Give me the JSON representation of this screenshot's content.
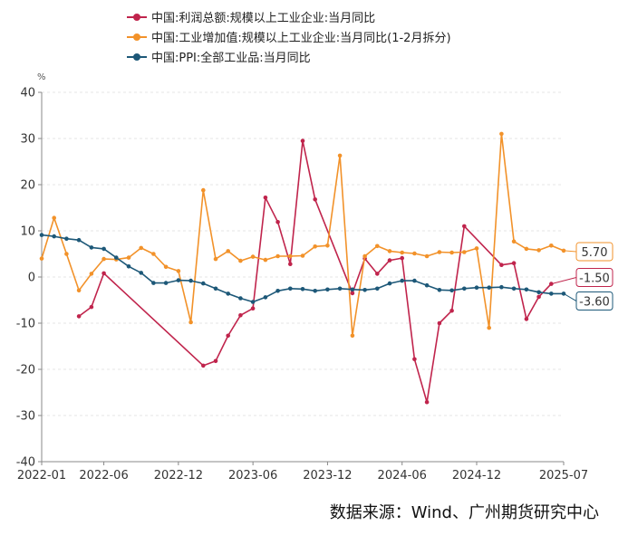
{
  "source_note": "数据来源：Wind、广州期货研究中心",
  "chart_data": {
    "type": "line",
    "y_unit": "%",
    "ylim": [
      -40,
      40
    ],
    "y_ticks": [
      "40",
      "30",
      "20",
      "10",
      "0",
      "-10",
      "-20",
      "-30",
      "-40"
    ],
    "x_tick_labels": [
      "2022-01",
      "2022-06",
      "2022-12",
      "2023-06",
      "2023-12",
      "2024-06",
      "2024-12",
      "2025-07"
    ],
    "x": [
      "2022-01",
      "2022-02",
      "2022-03",
      "2022-04",
      "2022-05",
      "2022-06",
      "2022-07",
      "2022-08",
      "2022-09",
      "2022-10",
      "2022-11",
      "2022-12",
      "2023-01",
      "2023-02",
      "2023-03",
      "2023-04",
      "2023-05",
      "2023-06",
      "2023-07",
      "2023-08",
      "2023-09",
      "2023-10",
      "2023-11",
      "2023-12",
      "2024-01",
      "2024-02",
      "2024-03",
      "2024-04",
      "2024-05",
      "2024-06",
      "2024-07",
      "2024-08",
      "2024-09",
      "2024-10",
      "2024-11",
      "2024-12",
      "2025-01",
      "2025-02",
      "2025-03",
      "2025-04",
      "2025-05",
      "2025-06",
      "2025-07"
    ],
    "grid": true,
    "legend_position": "top",
    "series": [
      {
        "name": "中国:利润总额:规模以上工业企业:当月同比",
        "color": "#c0244c",
        "end_label": "-1.50",
        "values": [
          null,
          null,
          null,
          -8.5,
          -6.5,
          0.8,
          null,
          null,
          null,
          null,
          null,
          null,
          null,
          -19.2,
          -18.2,
          -12.7,
          -8.3,
          -6.8,
          17.2,
          11.9,
          2.8,
          29.5,
          16.8,
          null,
          null,
          -3.5,
          4.0,
          0.7,
          3.6,
          4.1,
          -17.8,
          -27.1,
          -10.0,
          -7.3,
          11.0,
          null,
          null,
          2.6,
          3.0,
          -9.1,
          -4.3,
          -1.5,
          null
        ]
      },
      {
        "name": "中国:工业增加值:规模以上工业企业:当月同比(1-2月拆分)",
        "color": "#f2922a",
        "end_label": "5.70",
        "values": [
          4.0,
          12.8,
          5.0,
          -2.9,
          0.7,
          3.9,
          3.8,
          4.2,
          6.3,
          5.0,
          2.2,
          1.3,
          -9.8,
          18.8,
          3.9,
          5.6,
          3.5,
          4.4,
          3.7,
          4.5,
          4.5,
          4.6,
          6.6,
          6.8,
          26.3,
          -12.7,
          4.5,
          6.7,
          5.6,
          5.3,
          5.1,
          4.5,
          5.4,
          5.3,
          5.4,
          6.2,
          -11.0,
          31.0,
          7.7,
          6.1,
          5.8,
          6.8,
          5.7
        ]
      },
      {
        "name": "中国:PPI:全部工业品:当月同比",
        "color": "#1d5878",
        "end_label": "-3.60",
        "values": [
          9.1,
          8.8,
          8.3,
          8.0,
          6.4,
          6.1,
          4.2,
          2.3,
          0.9,
          -1.3,
          -1.3,
          -0.7,
          -0.8,
          -1.4,
          -2.5,
          -3.6,
          -4.6,
          -5.4,
          -4.4,
          -3.0,
          -2.5,
          -2.6,
          -3.0,
          -2.7,
          -2.5,
          -2.7,
          -2.8,
          -2.5,
          -1.4,
          -0.8,
          -0.8,
          -1.8,
          -2.8,
          -2.9,
          -2.5,
          -2.3,
          -2.3,
          -2.2,
          -2.5,
          -2.7,
          -3.3,
          -3.6,
          -3.6
        ]
      }
    ]
  }
}
